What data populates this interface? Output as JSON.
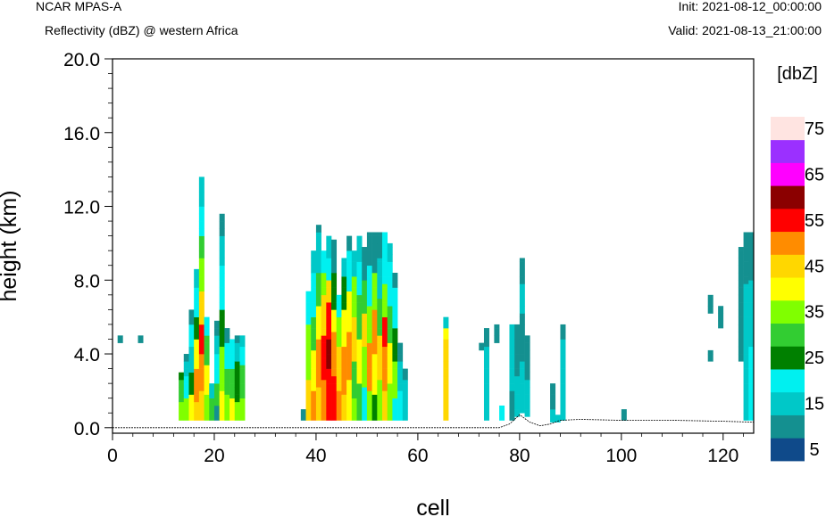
{
  "header": {
    "title_left": "NCAR MPAS-A",
    "subtitle_left": "Reflectivity (dBZ) @ western Africa",
    "init": "Init: 2021-08-12_00:00:00",
    "valid": "Valid: 2021-08-13_21:00:00"
  },
  "chart_data": {
    "type": "heatmap",
    "xlabel": "cell",
    "ylabel": "height (km)",
    "xlim": [
      0,
      126
    ],
    "ylim": [
      -0.3,
      20.0
    ],
    "x_ticks": [
      "0",
      "20",
      "40",
      "60",
      "80",
      "100",
      "120"
    ],
    "y_ticks": [
      "0.0",
      "4.0",
      "8.0",
      "12.0",
      "16.0",
      "20.0"
    ],
    "x_tick_values": [
      0,
      20,
      40,
      60,
      80,
      100,
      120
    ],
    "y_tick_values": [
      0.0,
      4.0,
      8.0,
      12.0,
      16.0,
      20.0
    ],
    "colorbar": {
      "unit": "[dbZ]",
      "labels": [
        "5",
        "15",
        "25",
        "35",
        "45",
        "55",
        "65",
        "75"
      ],
      "levels": [
        5,
        10,
        15,
        20,
        25,
        30,
        35,
        40,
        45,
        50,
        55,
        60,
        65,
        70,
        75
      ],
      "colors": [
        "#0f4a8a",
        "#149090",
        "#00c8c8",
        "#00f0f0",
        "#008000",
        "#32cd32",
        "#80ff00",
        "#ffff00",
        "#ffd700",
        "#ff8c00",
        "#ff0000",
        "#8b0000",
        "#ff00ff",
        "#9b30ff",
        "#ffe4e1"
      ]
    },
    "dz_km": 0.4,
    "columns": [
      {
        "x": 1,
        "cells": [
          [
            4.6,
            5.0,
            1
          ]
        ]
      },
      {
        "x": 5,
        "cells": [
          [
            4.6,
            5.0,
            1
          ]
        ]
      },
      {
        "x": 13,
        "cells": [
          [
            0.4,
            1.4,
            6
          ],
          [
            1.4,
            2.6,
            5
          ],
          [
            2.6,
            3.0,
            4
          ]
        ]
      },
      {
        "x": 14,
        "cells": [
          [
            0.4,
            1.6,
            6
          ],
          [
            1.6,
            2.8,
            3
          ],
          [
            2.8,
            3.6,
            2
          ],
          [
            3.6,
            4.0,
            1
          ]
        ]
      },
      {
        "x": 15,
        "cells": [
          [
            0.4,
            1.8,
            7
          ],
          [
            1.8,
            3.0,
            4
          ],
          [
            3.0,
            4.4,
            2
          ],
          [
            4.4,
            5.6,
            3
          ],
          [
            5.6,
            6.4,
            1
          ]
        ]
      },
      {
        "x": 16,
        "cells": [
          [
            0.4,
            1.4,
            8
          ],
          [
            1.4,
            3.2,
            9
          ],
          [
            3.2,
            4.8,
            7
          ],
          [
            4.8,
            6.0,
            4
          ],
          [
            6.0,
            7.6,
            3
          ],
          [
            7.6,
            8.6,
            2
          ]
        ]
      },
      {
        "x": 17,
        "cells": [
          [
            0.4,
            2.0,
            8
          ],
          [
            2.0,
            4.0,
            9
          ],
          [
            4.0,
            5.6,
            10
          ],
          [
            5.6,
            7.4,
            8
          ],
          [
            7.4,
            9.2,
            6
          ],
          [
            9.2,
            10.4,
            5
          ],
          [
            10.4,
            12.0,
            3
          ],
          [
            12.0,
            13.6,
            2
          ]
        ]
      },
      {
        "x": 18,
        "cells": [
          [
            0.4,
            1.8,
            6
          ],
          [
            1.8,
            3.4,
            7
          ],
          [
            3.4,
            5.0,
            5
          ],
          [
            5.0,
            6.0,
            3
          ]
        ]
      },
      {
        "x": 19,
        "cells": [
          [
            0.4,
            1.6,
            5
          ],
          [
            1.6,
            2.4,
            2
          ]
        ]
      },
      {
        "x": 20,
        "cells": [
          [
            0.4,
            1.2,
            1
          ],
          [
            1.2,
            2.4,
            5
          ],
          [
            2.4,
            4.0,
            3
          ],
          [
            4.0,
            5.0,
            2
          ],
          [
            5.0,
            5.8,
            1
          ]
        ]
      },
      {
        "x": 21,
        "cells": [
          [
            0.4,
            2.0,
            7
          ],
          [
            2.0,
            4.4,
            6
          ],
          [
            4.4,
            6.4,
            4
          ],
          [
            6.4,
            8.8,
            3
          ],
          [
            8.8,
            10.4,
            2
          ],
          [
            10.4,
            11.6,
            1
          ]
        ]
      },
      {
        "x": 22,
        "cells": [
          [
            0.4,
            1.8,
            6
          ],
          [
            1.8,
            3.2,
            5
          ],
          [
            3.2,
            4.6,
            3
          ],
          [
            4.6,
            5.4,
            1
          ]
        ]
      },
      {
        "x": 23,
        "cells": [
          [
            0.4,
            1.6,
            7
          ],
          [
            1.6,
            3.2,
            5
          ],
          [
            3.2,
            4.8,
            3
          ]
        ]
      },
      {
        "x": 24,
        "cells": [
          [
            0.4,
            1.4,
            6
          ],
          [
            1.4,
            3.6,
            4
          ],
          [
            3.6,
            4.6,
            2
          ],
          [
            4.6,
            5.0,
            1
          ]
        ]
      },
      {
        "x": 25,
        "cells": [
          [
            0.4,
            1.6,
            6
          ],
          [
            1.6,
            3.4,
            5
          ],
          [
            3.4,
            4.4,
            3
          ],
          [
            4.4,
            5.0,
            2
          ]
        ]
      },
      {
        "x": 37,
        "cells": [
          [
            0.4,
            1.0,
            1
          ]
        ]
      },
      {
        "x": 38,
        "cells": [
          [
            0.4,
            2.6,
            8
          ],
          [
            2.6,
            5.6,
            6
          ],
          [
            5.6,
            7.4,
            3
          ]
        ]
      },
      {
        "x": 39,
        "cells": [
          [
            0.4,
            2.0,
            9
          ],
          [
            2.0,
            4.2,
            7
          ],
          [
            4.2,
            6.0,
            5
          ],
          [
            6.0,
            8.4,
            3
          ],
          [
            8.4,
            9.6,
            2
          ]
        ]
      },
      {
        "x": 40,
        "cells": [
          [
            0.4,
            2.2,
            8
          ],
          [
            2.2,
            4.8,
            9
          ],
          [
            4.8,
            6.6,
            7
          ],
          [
            6.6,
            8.4,
            5
          ],
          [
            8.4,
            10.6,
            2
          ],
          [
            10.6,
            11.0,
            1
          ]
        ]
      },
      {
        "x": 41,
        "cells": [
          [
            0.4,
            2.6,
            9
          ],
          [
            2.6,
            5.0,
            10
          ],
          [
            5.0,
            7.2,
            8
          ],
          [
            7.2,
            8.4,
            6
          ],
          [
            8.4,
            9.6,
            3
          ]
        ]
      },
      {
        "x": 42,
        "cells": [
          [
            0.4,
            3.2,
            10
          ],
          [
            3.2,
            4.8,
            11
          ],
          [
            4.8,
            6.8,
            10
          ],
          [
            6.8,
            8.0,
            8
          ],
          [
            8.0,
            9.2,
            3
          ],
          [
            9.2,
            10.4,
            2
          ]
        ]
      },
      {
        "x": 43,
        "cells": [
          [
            0.4,
            2.8,
            10
          ],
          [
            2.8,
            5.2,
            9
          ],
          [
            5.2,
            6.4,
            7
          ],
          [
            6.4,
            8.4,
            4
          ],
          [
            8.4,
            10.2,
            1
          ]
        ]
      },
      {
        "x": 44,
        "cells": [
          [
            0.4,
            2.0,
            9
          ],
          [
            2.0,
            4.4,
            8
          ],
          [
            4.4,
            6.0,
            6
          ],
          [
            6.0,
            7.2,
            3
          ]
        ]
      },
      {
        "x": 45,
        "cells": [
          [
            0.4,
            1.8,
            8
          ],
          [
            1.8,
            4.4,
            9
          ],
          [
            4.4,
            6.4,
            7
          ],
          [
            6.4,
            8.2,
            4
          ],
          [
            8.2,
            9.2,
            2
          ]
        ]
      },
      {
        "x": 46,
        "cells": [
          [
            0.4,
            2.6,
            7
          ],
          [
            2.6,
            5.2,
            9
          ],
          [
            5.2,
            7.4,
            7
          ],
          [
            7.4,
            9.6,
            3
          ],
          [
            9.6,
            10.4,
            1
          ]
        ]
      },
      {
        "x": 47,
        "cells": [
          [
            0.4,
            1.6,
            6
          ],
          [
            1.6,
            3.6,
            5
          ],
          [
            3.6,
            6.0,
            8
          ],
          [
            6.0,
            8.2,
            6
          ],
          [
            8.2,
            9.6,
            2
          ]
        ]
      },
      {
        "x": 48,
        "cells": [
          [
            0.4,
            2.4,
            5
          ],
          [
            2.4,
            4.8,
            7
          ],
          [
            4.8,
            7.2,
            5
          ],
          [
            7.2,
            9.0,
            3
          ],
          [
            9.0,
            10.4,
            2
          ]
        ]
      },
      {
        "x": 49,
        "cells": [
          [
            0.4,
            2.2,
            3
          ],
          [
            2.2,
            4.4,
            6
          ],
          [
            4.4,
            6.2,
            8
          ],
          [
            6.2,
            8.0,
            5
          ],
          [
            8.0,
            9.8,
            1
          ]
        ]
      },
      {
        "x": 50,
        "cells": [
          [
            0.4,
            2.0,
            6
          ],
          [
            2.0,
            4.6,
            9
          ],
          [
            4.6,
            6.6,
            6
          ],
          [
            6.6,
            8.8,
            3
          ],
          [
            8.8,
            10.6,
            1
          ]
        ]
      },
      {
        "x": 51,
        "cells": [
          [
            0.4,
            1.8,
            4
          ],
          [
            1.8,
            4.0,
            7
          ],
          [
            4.0,
            6.4,
            9
          ],
          [
            6.4,
            8.4,
            6
          ],
          [
            8.4,
            10.6,
            1
          ]
        ]
      },
      {
        "x": 52,
        "cells": [
          [
            0.4,
            2.6,
            6
          ],
          [
            2.6,
            5.0,
            8
          ],
          [
            5.0,
            7.0,
            5
          ],
          [
            7.0,
            9.2,
            2
          ],
          [
            9.2,
            10.6,
            1
          ]
        ]
      },
      {
        "x": 53,
        "cells": [
          [
            0.4,
            2.0,
            8
          ],
          [
            2.0,
            4.4,
            9
          ],
          [
            4.4,
            6.0,
            10
          ],
          [
            6.0,
            7.8,
            6
          ],
          [
            7.8,
            10.6,
            3
          ]
        ]
      },
      {
        "x": 54,
        "cells": [
          [
            0.4,
            2.4,
            6
          ],
          [
            2.4,
            4.6,
            7
          ],
          [
            4.6,
            6.6,
            5
          ],
          [
            6.6,
            9.0,
            3
          ],
          [
            9.0,
            10.0,
            2
          ]
        ]
      },
      {
        "x": 55,
        "cells": [
          [
            0.4,
            1.6,
            3
          ],
          [
            1.6,
            3.6,
            6
          ],
          [
            3.6,
            5.4,
            4
          ],
          [
            5.4,
            7.6,
            3
          ],
          [
            7.6,
            8.4,
            1
          ]
        ]
      },
      {
        "x": 56,
        "cells": [
          [
            0.4,
            2.0,
            3
          ],
          [
            2.0,
            3.6,
            2
          ],
          [
            3.6,
            4.6,
            1
          ]
        ]
      },
      {
        "x": 57,
        "cells": [
          [
            0.4,
            2.6,
            2
          ],
          [
            2.6,
            3.2,
            1
          ]
        ]
      },
      {
        "x": 65,
        "cells": [
          [
            0.4,
            4.8,
            8
          ],
          [
            4.8,
            5.4,
            7
          ],
          [
            5.4,
            6.0,
            2
          ]
        ]
      },
      {
        "x": 72,
        "cells": [
          [
            4.2,
            4.6,
            1
          ]
        ]
      },
      {
        "x": 73,
        "cells": [
          [
            0.4,
            4.4,
            2
          ],
          [
            4.4,
            5.4,
            1
          ]
        ]
      },
      {
        "x": 75,
        "cells": [
          [
            4.6,
            5.6,
            1
          ]
        ]
      },
      {
        "x": 76,
        "cells": [
          [
            0.4,
            1.2,
            3
          ]
        ]
      },
      {
        "x": 78,
        "cells": [
          [
            0.4,
            2.0,
            1
          ],
          [
            2.0,
            5.6,
            2
          ]
        ]
      },
      {
        "x": 79,
        "cells": [
          [
            0.6,
            2.8,
            2
          ],
          [
            2.8,
            5.6,
            1
          ]
        ]
      },
      {
        "x": 80,
        "cells": [
          [
            0.8,
            3.6,
            2
          ],
          [
            3.6,
            6.2,
            1
          ],
          [
            6.2,
            7.8,
            2
          ],
          [
            7.8,
            9.2,
            1
          ]
        ]
      },
      {
        "x": 81,
        "cells": [
          [
            0.6,
            2.6,
            2
          ],
          [
            2.6,
            5.0,
            1
          ]
        ]
      },
      {
        "x": 86,
        "cells": [
          [
            0.3,
            1.0,
            2
          ],
          [
            1.0,
            2.4,
            1
          ]
        ]
      },
      {
        "x": 87,
        "cells": [
          [
            0.3,
            0.7,
            2
          ]
        ]
      },
      {
        "x": 88,
        "cells": [
          [
            0.4,
            4.8,
            2
          ],
          [
            4.8,
            5.6,
            1
          ]
        ]
      },
      {
        "x": 100,
        "cells": [
          [
            0.4,
            1.0,
            1
          ]
        ]
      },
      {
        "x": 117,
        "cells": [
          [
            3.6,
            4.2,
            1
          ],
          [
            6.2,
            7.2,
            1
          ]
        ]
      },
      {
        "x": 119,
        "cells": [
          [
            5.4,
            6.6,
            1
          ]
        ]
      },
      {
        "x": 123,
        "cells": [
          [
            3.6,
            9.8,
            1
          ]
        ]
      },
      {
        "x": 124,
        "cells": [
          [
            0.4,
            3.6,
            2
          ],
          [
            3.6,
            7.8,
            2
          ],
          [
            7.8,
            10.6,
            1
          ]
        ]
      },
      {
        "x": 125,
        "cells": [
          [
            0.4,
            4.4,
            3
          ],
          [
            4.4,
            8.0,
            2
          ],
          [
            8.0,
            10.6,
            1
          ]
        ]
      }
    ],
    "terrain": [
      [
        0,
        0.0
      ],
      [
        76,
        0.0
      ],
      [
        78,
        0.2
      ],
      [
        80,
        0.7
      ],
      [
        82,
        0.3
      ],
      [
        84,
        0.1
      ],
      [
        86,
        0.2
      ],
      [
        88,
        0.4
      ],
      [
        92,
        0.45
      ],
      [
        100,
        0.4
      ],
      [
        110,
        0.4
      ],
      [
        120,
        0.35
      ],
      [
        126,
        0.3
      ]
    ]
  }
}
